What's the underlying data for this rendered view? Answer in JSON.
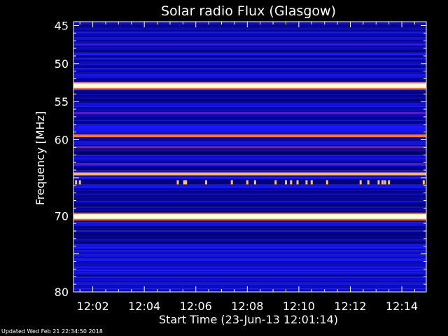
{
  "chart_data": {
    "type": "heatmap",
    "title": "Solar radio Flux (Glasgow)",
    "xlabel": "Start Time (23-Jun-13 12:01:14)",
    "ylabel": "Frequency [MHz]",
    "x_ticks": [
      "12:02",
      "12:04",
      "12:06",
      "12:08",
      "12:10",
      "12:12",
      "12:14"
    ],
    "x_tick_minutes": [
      2,
      4,
      6,
      8,
      10,
      12,
      14
    ],
    "xlim_minutes": [
      1.25,
      14.95
    ],
    "y_ticks": [
      45,
      50,
      55,
      60,
      65,
      70,
      75,
      80
    ],
    "y_tick_labels": [
      "45",
      "50",
      "55",
      "60",
      "",
      "70",
      "",
      "80"
    ],
    "ylim": [
      44.5,
      80.0
    ],
    "y_reversed": true,
    "colormap": [
      "#000010",
      "#00007a",
      "#1a1aff",
      "#ff2020",
      "#ffb030",
      "#ffffe0"
    ],
    "background_intensity": 0.3,
    "bands": [
      {
        "freq": 47.5,
        "intensity": 0.42
      },
      {
        "freq": 51.5,
        "intensity": 0.38
      },
      {
        "freq": 52.9,
        "intensity": 1.0
      },
      {
        "freq": 53.8,
        "intensity": 0.15
      },
      {
        "freq": 56.5,
        "intensity": 0.45
      },
      {
        "freq": 59.5,
        "intensity": 0.72
      },
      {
        "freq": 60.3,
        "intensity": 0.35
      },
      {
        "freq": 61.0,
        "intensity": 0.5
      },
      {
        "freq": 61.7,
        "intensity": 0.1
      },
      {
        "freq": 63.2,
        "intensity": 0.45
      },
      {
        "freq": 64.5,
        "intensity": 0.82
      },
      {
        "freq": 65.0,
        "intensity": 0.4
      },
      {
        "freq": 66.0,
        "intensity": 0.35
      },
      {
        "freq": 67.2,
        "intensity": 0.3
      },
      {
        "freq": 70.1,
        "intensity": 1.0
      },
      {
        "freq": 71.5,
        "intensity": 0.2
      },
      {
        "freq": 73.5,
        "intensity": 0.15
      },
      {
        "freq": 74.2,
        "intensity": 0.4
      },
      {
        "freq": 76.5,
        "intensity": 0.3
      }
    ],
    "bursts": {
      "freq": 65.6,
      "minutes": [
        1.35,
        1.5,
        5.3,
        5.55,
        5.62,
        6.4,
        7.4,
        8.0,
        8.3,
        9.1,
        9.5,
        9.7,
        9.95,
        10.3,
        10.5,
        11.1,
        12.4,
        12.7,
        13.1,
        13.25,
        13.35,
        13.5,
        14.85
      ]
    }
  },
  "footer": "Updated Wed Feb 21 22:34:50 2018"
}
